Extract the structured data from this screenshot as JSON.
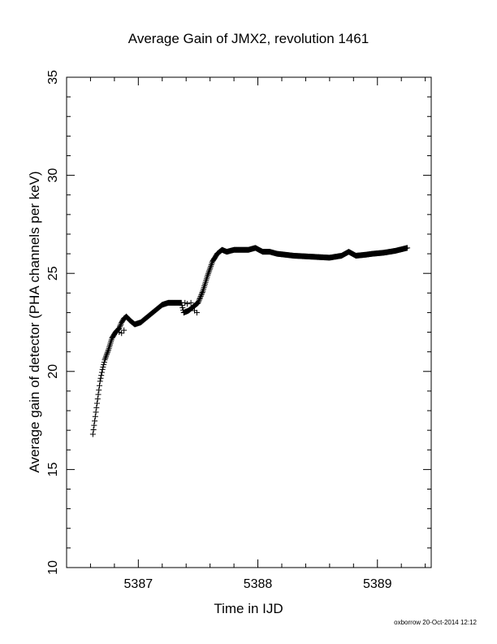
{
  "chart_data": {
    "type": "scatter",
    "title": "Average Gain of JMX2, revolution 1461",
    "xlabel": "Time in IJD",
    "ylabel": "Average gain of detector (PHA channels per keV)",
    "xlim": [
      5386.4,
      5389.45
    ],
    "ylim": [
      10,
      35
    ],
    "xticks": [
      5387,
      5388,
      5389
    ],
    "yticks": [
      10,
      15,
      20,
      25,
      30,
      35
    ],
    "marker": "plus",
    "marker_color": "#000000",
    "grid": false,
    "curve_knots": [
      [
        5386.62,
        16.8
      ],
      [
        5386.64,
        17.7
      ],
      [
        5386.66,
        18.6
      ],
      [
        5386.68,
        19.5
      ],
      [
        5386.7,
        20.1
      ],
      [
        5386.72,
        20.6
      ],
      [
        5386.75,
        21.1
      ],
      [
        5386.78,
        21.7
      ],
      [
        5386.81,
        22.0
      ],
      [
        5386.84,
        22.2
      ],
      [
        5386.86,
        22.5
      ],
      [
        5386.88,
        22.7
      ],
      [
        5386.9,
        22.8
      ],
      [
        5386.93,
        22.6
      ],
      [
        5386.97,
        22.4
      ],
      [
        5387.02,
        22.5
      ],
      [
        5387.08,
        22.8
      ],
      [
        5387.14,
        23.1
      ],
      [
        5387.2,
        23.4
      ],
      [
        5387.25,
        23.5
      ],
      [
        5387.3,
        23.5
      ],
      [
        5387.36,
        23.5
      ],
      [
        5387.38,
        23.0
      ],
      [
        5387.42,
        23.1
      ],
      [
        5387.46,
        23.3
      ],
      [
        5387.5,
        23.5
      ],
      [
        5387.54,
        24.1
      ],
      [
        5387.58,
        24.9
      ],
      [
        5387.62,
        25.6
      ],
      [
        5387.66,
        26.0
      ],
      [
        5387.7,
        26.2
      ],
      [
        5387.74,
        26.1
      ],
      [
        5387.8,
        26.2
      ],
      [
        5387.86,
        26.2
      ],
      [
        5387.92,
        26.2
      ],
      [
        5387.98,
        26.3
      ],
      [
        5388.04,
        26.1
      ],
      [
        5388.1,
        26.1
      ],
      [
        5388.16,
        26.0
      ],
      [
        5388.3,
        25.9
      ],
      [
        5388.45,
        25.85
      ],
      [
        5388.6,
        25.8
      ],
      [
        5388.7,
        25.9
      ],
      [
        5388.76,
        26.1
      ],
      [
        5388.82,
        25.9
      ],
      [
        5388.9,
        25.95
      ],
      [
        5388.96,
        26.0
      ],
      [
        5389.05,
        26.05
      ],
      [
        5389.15,
        26.15
      ],
      [
        5389.25,
        26.3
      ]
    ],
    "scatter_points": [
      [
        5386.84,
        22.0
      ],
      [
        5386.86,
        21.95
      ],
      [
        5386.88,
        22.1
      ],
      [
        5386.85,
        22.35
      ],
      [
        5387.47,
        23.1
      ],
      [
        5387.49,
        23.0
      ],
      [
        5387.39,
        23.5
      ],
      [
        5387.41,
        23.45
      ],
      [
        5387.44,
        23.5
      ]
    ]
  },
  "footer": {
    "stamp": "oxborrow 20-Oct-2014 12:12"
  }
}
